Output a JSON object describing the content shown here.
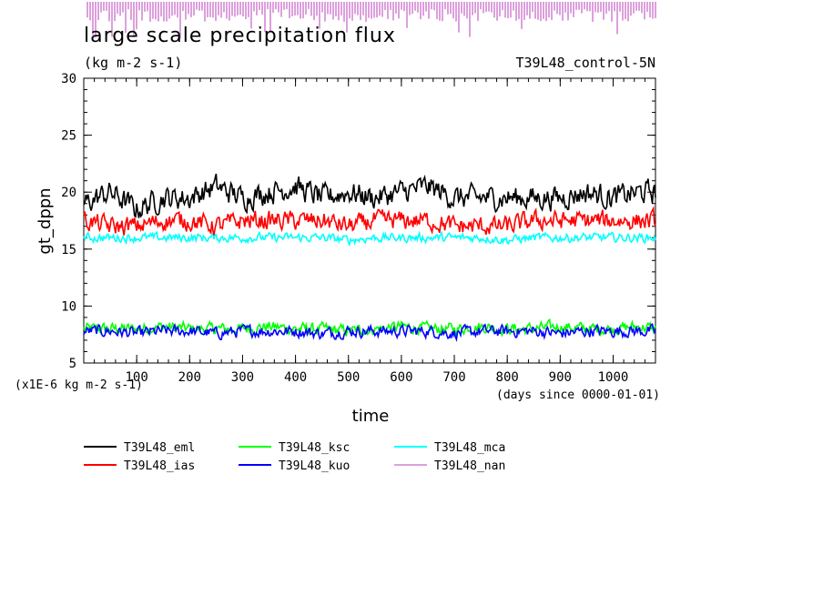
{
  "chart_data": {
    "type": "line",
    "title": "large scale precipitation flux",
    "subtitle": "(kg m-2 s-1)",
    "run_label": "T39L48_control-5N",
    "xlabel": "time",
    "x_units": "(days since 0000-01-01)",
    "ylabel": "gt_dppn",
    "y_scale_note": "(x1E-6 kg m-2 s-1)",
    "xlim": [
      0,
      1080
    ],
    "ylim": [
      5,
      30
    ],
    "x_ticks": [
      100,
      200,
      300,
      400,
      500,
      600,
      700,
      800,
      900,
      1000
    ],
    "y_ticks": [
      5,
      10,
      15,
      20,
      25,
      30
    ],
    "grid": false,
    "legend_position": "bottom-left",
    "series": [
      {
        "name": "T39L48_eml",
        "color": "#000000",
        "x": [
          0,
          50,
          100,
          150,
          200,
          250,
          300,
          350,
          400,
          450,
          500,
          550,
          600,
          650,
          700,
          750,
          800,
          850,
          900,
          950,
          1000,
          1050,
          1080
        ],
        "values": [
          19,
          20,
          18.5,
          19.5,
          19.5,
          20.5,
          19.5,
          20,
          20.5,
          19.5,
          20,
          19.5,
          20,
          20.5,
          19.5,
          19.5,
          19.5,
          19.5,
          19.5,
          20,
          19.5,
          20,
          20
        ]
      },
      {
        "name": "T39L48_ias",
        "color": "#ff0000",
        "x": [
          0,
          50,
          100,
          150,
          200,
          250,
          300,
          350,
          400,
          450,
          500,
          550,
          600,
          650,
          700,
          750,
          800,
          850,
          900,
          950,
          1000,
          1050,
          1080
        ],
        "values": [
          17.5,
          17,
          17,
          17.5,
          17.5,
          17,
          17.5,
          17.5,
          17.5,
          17.5,
          17,
          17.5,
          17.5,
          17.5,
          17,
          17,
          17,
          17.5,
          17.5,
          17.5,
          17.5,
          17.5,
          17.5
        ]
      },
      {
        "name": "T39L48_ksc",
        "color": "#00ff00",
        "x": [
          0,
          50,
          100,
          150,
          200,
          250,
          300,
          350,
          400,
          450,
          500,
          550,
          600,
          650,
          700,
          750,
          800,
          850,
          900,
          950,
          1000,
          1050,
          1080
        ],
        "values": [
          8,
          8,
          8,
          8.2,
          8,
          8,
          8,
          8.2,
          8,
          8,
          7.8,
          8,
          8.2,
          8,
          8,
          8.2,
          8,
          8,
          8.2,
          8,
          8,
          8.2,
          8
        ]
      },
      {
        "name": "T39L48_kuo",
        "color": "#0000ff",
        "x": [
          0,
          50,
          100,
          150,
          200,
          250,
          300,
          350,
          400,
          450,
          500,
          550,
          600,
          650,
          700,
          750,
          800,
          850,
          900,
          950,
          1000,
          1050,
          1080
        ],
        "values": [
          7.8,
          7.8,
          7.6,
          7.8,
          7.8,
          7.6,
          7.8,
          7.8,
          7.8,
          7.6,
          7.8,
          7.8,
          7.8,
          7.8,
          7.6,
          7.8,
          7.8,
          7.8,
          7.6,
          7.8,
          7.8,
          7.8,
          7.8
        ]
      },
      {
        "name": "T39L48_mca",
        "color": "#00ffff",
        "x": [
          0,
          50,
          100,
          150,
          200,
          250,
          300,
          350,
          400,
          450,
          500,
          550,
          600,
          650,
          700,
          750,
          800,
          850,
          900,
          950,
          1000,
          1050,
          1080
        ],
        "values": [
          16,
          16,
          16,
          16,
          16,
          16,
          16,
          16,
          16,
          16,
          15.8,
          16,
          16,
          16,
          16,
          16,
          15.8,
          16,
          16,
          16,
          16,
          16,
          16
        ]
      },
      {
        "name": "T39L48_nan",
        "color": "#dda0dd",
        "x": [],
        "values": []
      }
    ]
  }
}
